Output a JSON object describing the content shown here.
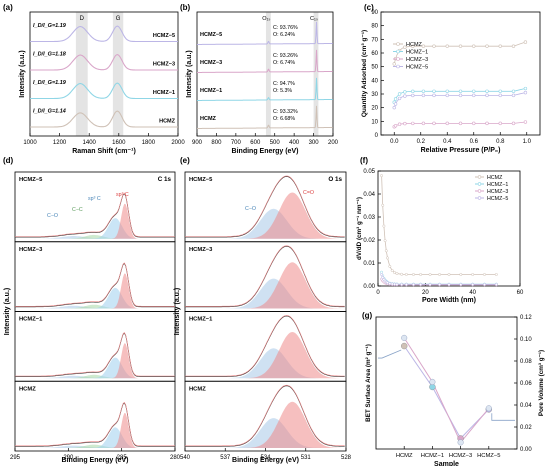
{
  "figure": {
    "colors": {
      "hcmz": "#cfc1b6",
      "hcmz1": "#8fd6e6",
      "hcmz3": "#d9a6c9",
      "hcmz5": "#bcb6e6",
      "fit_c_sp2": "#ef8a8a",
      "fit_c_sp3": "#9fd0ef",
      "fit_cc": "#a8d8a8",
      "fit_co": "#a8c8e8",
      "envelope": "#444444",
      "band": "#d9d9d9",
      "hollow": "#aaaaaa"
    }
  },
  "chart_data": [
    {
      "id": "a",
      "panel_label": "(a)",
      "type": "line",
      "xlabel": "Raman Shift (cm⁻¹)",
      "ylabel": "Intensity (a.u.)",
      "xlim": [
        1000,
        2000
      ],
      "reversed": false,
      "ticks": [
        1000,
        1200,
        1400,
        1600,
        1800,
        2000
      ],
      "tick_labels": [
        "1000",
        "1200",
        "1400",
        "1600",
        "1800",
        "2000"
      ],
      "bands": [
        {
          "name": "D",
          "range": [
            1310,
            1390
          ]
        },
        {
          "name": "G",
          "range": [
            1560,
            1630
          ]
        }
      ],
      "series": [
        {
          "name": "HCMZ",
          "ratio": "I_D/I_G=1.14",
          "color_key": "hcmz",
          "peaks": [
            [
              1340,
              0.55,
              70
            ],
            [
              1590,
              0.62,
              45
            ]
          ]
        },
        {
          "name": "HCMZ−1",
          "ratio": "I_D/I_G=1.19",
          "color_key": "hcmz1",
          "peaks": [
            [
              1340,
              0.58,
              70
            ],
            [
              1590,
              0.6,
              45
            ]
          ]
        },
        {
          "name": "HCMZ−3",
          "ratio": "I_D/I_G=1.18",
          "color_key": "hcmz3",
          "peaks": [
            [
              1340,
              0.58,
              70
            ],
            [
              1590,
              0.6,
              45
            ]
          ]
        },
        {
          "name": "HCMZ−5",
          "ratio": "I_D/I_G=1.19",
          "color_key": "hcmz5",
          "peaks": [
            [
              1340,
              0.58,
              70
            ],
            [
              1590,
              0.6,
              45
            ]
          ]
        }
      ]
    },
    {
      "id": "b",
      "panel_label": "(b)",
      "type": "line",
      "xlabel": "Binding Energy (eV)",
      "ylabel": "Intensity (a.u.)",
      "xlim": [
        900,
        200
      ],
      "reversed": true,
      "ticks": [
        900,
        800,
        700,
        600,
        500,
        400,
        300,
        200
      ],
      "tick_labels": [
        "900",
        "800",
        "700",
        "600",
        "500",
        "400",
        "300",
        "200"
      ],
      "bands": [
        {
          "name": "O₁ₛ",
          "range": [
            545,
            520
          ]
        },
        {
          "name": "C₁ₛ",
          "range": [
            300,
            275
          ]
        }
      ],
      "series": [
        {
          "name": "HCMZ",
          "c": "C: 93.32%",
          "o": "O: 6.68%",
          "color_key": "hcmz",
          "peaks": [
            [
              532,
              0.12,
              4
            ],
            [
              285,
              0.85,
              3
            ]
          ]
        },
        {
          "name": "HCMZ−1",
          "c": "C: 94.7%",
          "o": "O: 5.3%",
          "color_key": "hcmz1",
          "peaks": [
            [
              532,
              0.1,
              4
            ],
            [
              285,
              0.85,
              3
            ]
          ]
        },
        {
          "name": "HCMZ−3",
          "c": "C: 93.26%",
          "o": "O: 6.74%",
          "color_key": "hcmz3",
          "peaks": [
            [
              532,
              0.12,
              4
            ],
            [
              285,
              0.85,
              3
            ]
          ]
        },
        {
          "name": "HCMZ−5",
          "c": "C: 93.76%",
          "o": "O: 6.24%",
          "color_key": "hcmz5",
          "peaks": [
            [
              532,
              0.11,
              4
            ],
            [
              285,
              0.85,
              3
            ]
          ]
        }
      ]
    },
    {
      "id": "c",
      "panel_label": "(c)",
      "type": "line",
      "xlabel": "Relative Pressure (P/P₀)",
      "ylabel": "Quantity Adsorbed (cm³ g⁻¹)",
      "xlim": [
        -0.1,
        1.1
      ],
      "ylim": [
        0,
        90
      ],
      "xticks": [
        0.0,
        0.2,
        0.4,
        0.6,
        0.8,
        1.0
      ],
      "xtick_labels": [
        "0.0",
        "0.2",
        "0.4",
        "0.6",
        "0.8",
        "1.0"
      ],
      "yticks": [
        0,
        10,
        20,
        30,
        40,
        50,
        60,
        70,
        80,
        90
      ],
      "ytick_labels": [
        "0",
        "10",
        "20",
        "30",
        "40",
        "50",
        "60",
        "70",
        "80",
        "90"
      ],
      "legend": "center-left",
      "series": [
        {
          "name": "HCMZ",
          "color_key": "hcmz",
          "plateau": 65,
          "start": 52,
          "end": 68
        },
        {
          "name": "HCMZ−1",
          "color_key": "hcmz1",
          "plateau": 32,
          "start": 24,
          "end": 34
        },
        {
          "name": "HCMZ−3",
          "color_key": "hcmz3",
          "plateau": 8.5,
          "start": 6,
          "end": 9.5
        },
        {
          "name": "HCMZ−5",
          "color_key": "hcmz5",
          "plateau": 29,
          "start": 20,
          "end": 31
        }
      ]
    },
    {
      "id": "d",
      "panel_label": "(d)",
      "type": "line",
      "title": "C 1s",
      "xlabel": "Binding Energy (eV)",
      "ylabel": "Intensity (a.u.)",
      "xlim": [
        295,
        280
      ],
      "reversed": true,
      "ticks": [
        295,
        290,
        285,
        280
      ],
      "tick_labels": [
        "295",
        "290",
        "285",
        "280"
      ],
      "component_labels": [
        "C−O",
        "C−C",
        "sp³ C",
        "sp² C"
      ],
      "samples": [
        "HCMZ−5",
        "HCMZ−3",
        "HCMZ−1",
        "HCMZ"
      ]
    },
    {
      "id": "e",
      "panel_label": "(e)",
      "type": "line",
      "title": "O 1s",
      "xlabel": "Binding Energy (eV)",
      "ylabel": "Intensity (a.u.)",
      "xlim": [
        540,
        528
      ],
      "reversed": true,
      "ticks": [
        540,
        537,
        534,
        531,
        528
      ],
      "tick_labels": [
        "540",
        "537",
        "534",
        "531",
        "528"
      ],
      "component_labels": [
        "C−O",
        "C=O"
      ],
      "samples": [
        "HCMZ−5",
        "HCMZ−3",
        "HCMZ−1",
        "HCMZ"
      ]
    },
    {
      "id": "f",
      "panel_label": "(f)",
      "type": "line",
      "xlabel": "Pore Width (nm)",
      "ylabel": "dV/dD (cm³ g⁻¹ nm⁻¹)",
      "xlim": [
        0,
        60
      ],
      "ylim": [
        0,
        0.05
      ],
      "xticks": [
        0,
        20,
        40,
        60
      ],
      "xtick_labels": [
        "0",
        "20",
        "40",
        "60"
      ],
      "yticks": [
        0.0,
        0.01,
        0.02,
        0.03,
        0.04,
        0.05
      ],
      "ytick_labels": [
        "0.00",
        "0.01",
        "0.02",
        "0.03",
        "0.04",
        "0.05"
      ],
      "legend": "top-right",
      "series": [
        {
          "name": "HCMZ",
          "color_key": "hcmz",
          "peak": 0.048,
          "tail": 0.005
        },
        {
          "name": "HCMZ−1",
          "color_key": "hcmz1",
          "peak": 0.006,
          "tail": 0.0008
        },
        {
          "name": "HCMZ−3",
          "color_key": "hcmz3",
          "peak": 0.003,
          "tail": 0.0005
        },
        {
          "name": "HCMZ−5",
          "color_key": "hcmz5",
          "peak": 0.005,
          "tail": 0.0007
        }
      ]
    },
    {
      "id": "g",
      "panel_label": "(g)",
      "type": "line",
      "xlabel": "Sample",
      "ylabel": "BET Surface Area (m² g⁻¹)",
      "ylabel_right": "Pore Volume (cm³ g⁻¹)",
      "categories": [
        "HCMZ",
        "HCMZ−1",
        "HCMZ−3",
        "HCMZ−5"
      ],
      "ylim_right": [
        0,
        0.12
      ],
      "yticks_right": [
        0.0,
        0.02,
        0.04,
        0.06,
        0.08,
        0.1,
        0.12
      ],
      "ytick_labels_right": [
        "0.00",
        "0.02",
        "0.04",
        "0.06",
        "0.08",
        "0.10",
        "0.12"
      ],
      "series": [
        {
          "name": "BET Surface Area",
          "axis": "left",
          "values": [
            0.78,
            0.47,
            0.08,
            0.3
          ]
        },
        {
          "name": "Pore Volume",
          "axis": "right",
          "values": [
            0.101,
            0.061,
            0.006,
            0.037
          ]
        }
      ]
    }
  ]
}
